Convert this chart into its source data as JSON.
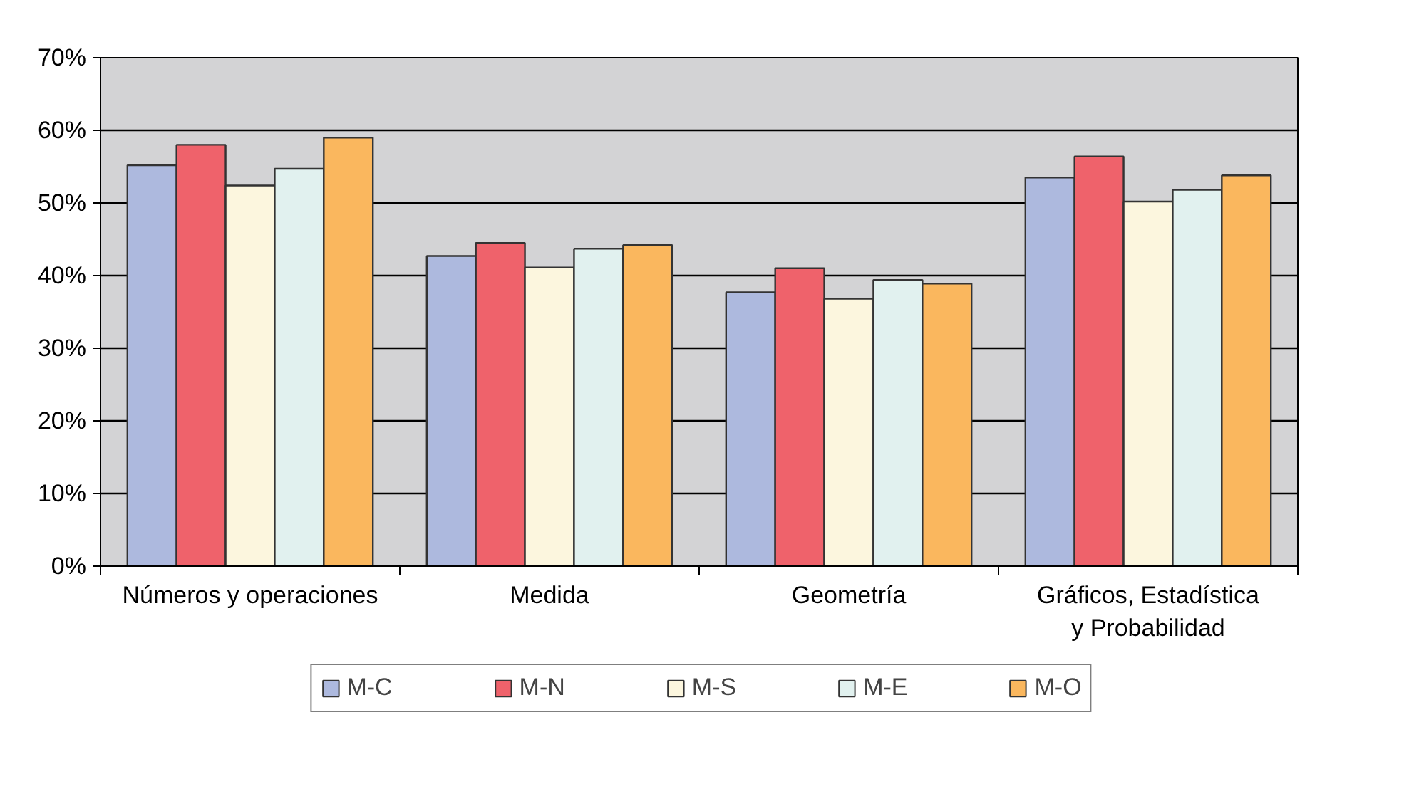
{
  "chart_data": {
    "type": "bar",
    "categories": [
      "Números y operaciones",
      "Medida",
      "Geometría",
      "Gráficos, Estadística y Probabilidad"
    ],
    "series": [
      {
        "name": "M-C",
        "color": "#adb9de",
        "values": [
          55.2,
          42.7,
          37.7,
          53.5
        ]
      },
      {
        "name": "M-N",
        "color": "#ef626b",
        "values": [
          58.0,
          44.5,
          41.0,
          56.4
        ]
      },
      {
        "name": "M-S",
        "color": "#fcf6de",
        "values": [
          52.4,
          41.1,
          36.8,
          50.2
        ]
      },
      {
        "name": "M-E",
        "color": "#e1f1ef",
        "values": [
          54.7,
          43.7,
          39.4,
          51.8
        ]
      },
      {
        "name": "M-O",
        "color": "#fab75e",
        "values": [
          59.0,
          44.2,
          38.9,
          53.8
        ]
      }
    ],
    "ylim": [
      0,
      70
    ],
    "yticks": [
      {
        "value": 0,
        "label": "0%"
      },
      {
        "value": 10,
        "label": "10%"
      },
      {
        "value": 20,
        "label": "20%"
      },
      {
        "value": 30,
        "label": "30%"
      },
      {
        "value": 40,
        "label": "40%"
      },
      {
        "value": 50,
        "label": "50%"
      },
      {
        "value": 60,
        "label": "60%"
      },
      {
        "value": 70,
        "label": "70%"
      }
    ],
    "grid": "y",
    "legend": "bottom"
  }
}
